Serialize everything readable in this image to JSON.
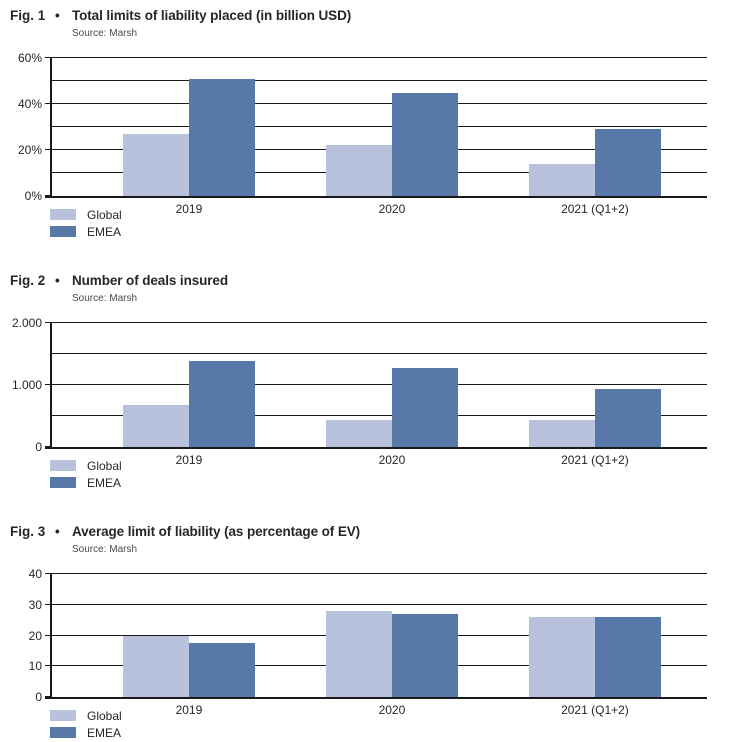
{
  "colors": {
    "global_series": "#b9c2dd",
    "emea_series": "#5878a8",
    "gridline": "#1a1a1a",
    "title_text": "#262626",
    "source_text": "#4a4a4a",
    "background": "#ffffff"
  },
  "chart_data": [
    {
      "type": "bar",
      "fig_label": "Fig. 1",
      "bullet": "•",
      "title": "Total limits of liability placed (in billion USD)",
      "source": "Source: Marsh",
      "categories": [
        "2019",
        "2020",
        "2021 (Q1+2)"
      ],
      "series": [
        {
          "name": "Global",
          "color": "#b9c2dd",
          "values": [
            27,
            22,
            14
          ]
        },
        {
          "name": "EMEA",
          "color": "#5878a8",
          "values": [
            51,
            45,
            29
          ]
        }
      ],
      "ylim": [
        0,
        60
      ],
      "grid_interval": 10,
      "grid": true,
      "unit": "%",
      "yticks": [
        {
          "value": 0,
          "label": "0%"
        },
        {
          "value": 20,
          "label": "20%"
        },
        {
          "value": 40,
          "label": "40%"
        },
        {
          "value": 60,
          "label": "60%"
        }
      ],
      "legend_position": "bottom-left"
    },
    {
      "type": "bar",
      "fig_label": "Fig. 2",
      "bullet": "•",
      "title": "Number of deals insured",
      "source": "Source: Marsh",
      "categories": [
        "2019",
        "2020",
        "2021 (Q1+2)"
      ],
      "series": [
        {
          "name": "Global",
          "color": "#b9c2dd",
          "values": [
            680,
            430,
            430
          ]
        },
        {
          "name": "EMEA",
          "color": "#5878a8",
          "values": [
            1380,
            1280,
            930
          ]
        }
      ],
      "ylim": [
        0,
        2000
      ],
      "grid_interval": 500,
      "grid": true,
      "unit": "deals",
      "yticks": [
        {
          "value": 0,
          "label": "0"
        },
        {
          "value": 1000,
          "label": "1.000"
        },
        {
          "value": 2000,
          "label": "2.000"
        }
      ],
      "legend_position": "bottom-left"
    },
    {
      "type": "bar",
      "fig_label": "Fig. 3",
      "bullet": "•",
      "title": "Average limit of liability (as percentage of EV)",
      "source": "Source: Marsh",
      "categories": [
        "2019",
        "2020",
        "2021 (Q1+2)"
      ],
      "series": [
        {
          "name": "Global",
          "color": "#b9c2dd",
          "values": [
            20,
            28,
            26
          ]
        },
        {
          "name": "EMEA",
          "color": "#5878a8",
          "values": [
            17.5,
            27,
            26
          ]
        }
      ],
      "ylim": [
        0,
        40
      ],
      "grid_interval": 10,
      "grid": true,
      "unit": "% of EV",
      "yticks": [
        {
          "value": 0,
          "label": "0"
        },
        {
          "value": 10,
          "label": "10"
        },
        {
          "value": 20,
          "label": "20"
        },
        {
          "value": 30,
          "label": "30"
        },
        {
          "value": 40,
          "label": "40"
        }
      ],
      "legend_position": "bottom-left"
    }
  ]
}
